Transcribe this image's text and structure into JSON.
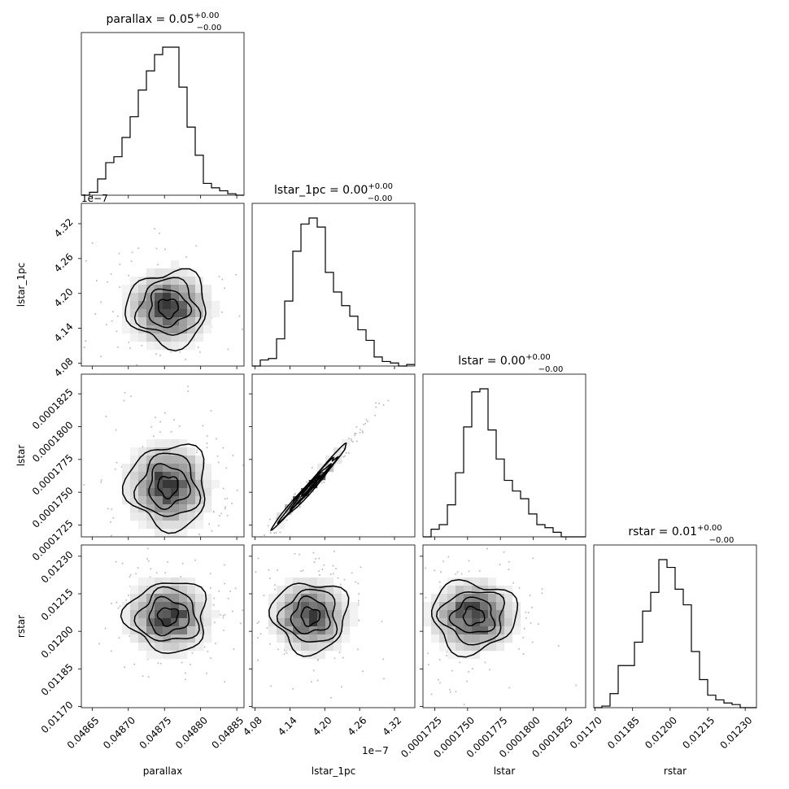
{
  "chart_data": {
    "type": "corner",
    "parameters": [
      "parallax",
      "lstar_1pc",
      "lstar",
      "rstar"
    ],
    "titles": {
      "parallax": {
        "label": "parallax = ",
        "value": "0.05",
        "plus": "+0.00",
        "minus": "−0.00"
      },
      "lstar_1pc": {
        "label": "lstar_1pc = ",
        "value": "0.00",
        "plus": "+0.00",
        "minus": "−0.00"
      },
      "lstar": {
        "label": "lstar = ",
        "value": "0.00",
        "plus": "+0.00",
        "minus": "−0.00"
      },
      "rstar": {
        "label": "rstar = ",
        "value": "0.01",
        "plus": "+0.00",
        "minus": "−0.00"
      }
    },
    "axis_labels": {
      "parallax": "parallax",
      "lstar_1pc": "lstar_1pc",
      "lstar": "lstar",
      "rstar": "rstar"
    },
    "ranges": {
      "parallax": [
        0.048635,
        0.04886
      ],
      "lstar_1pc": [
        4.075e-07,
        4.355e-07
      ],
      "lstar": [
        0.0001716,
        0.000184
      ],
      "rstar": [
        0.011695,
        0.012345
      ]
    },
    "ticks": {
      "parallax": {
        "values": [
          0.04865,
          0.0487,
          0.04875,
          0.0488,
          0.04885
        ],
        "labels": [
          "0.04865",
          "0.04870",
          "0.04875",
          "0.04880",
          "0.04885"
        ]
      },
      "lstar_1pc": {
        "values": [
          4.08e-07,
          4.14e-07,
          4.2e-07,
          4.26e-07,
          4.32e-07
        ],
        "labels": [
          "4.08",
          "4.14",
          "4.20",
          "4.26",
          "4.32"
        ],
        "offset": "1e−7"
      },
      "lstar": {
        "values": [
          0.0001725,
          0.000175,
          0.0001775,
          0.00018,
          0.0001825
        ],
        "labels": [
          "0.0001725",
          "0.0001750",
          "0.0001775",
          "0.0001800",
          "0.0001825"
        ]
      },
      "rstar": {
        "values": [
          0.0117,
          0.01185,
          0.012,
          0.01215,
          0.0123
        ],
        "labels": [
          "0.01170",
          "0.01185",
          "0.01200",
          "0.01215",
          "0.01230"
        ]
      }
    },
    "histograms": {
      "parallax": [
        0.0,
        0.02,
        0.11,
        0.22,
        0.26,
        0.39,
        0.53,
        0.71,
        0.84,
        0.95,
        1.0,
        1.0,
        0.73,
        0.46,
        0.27,
        0.08,
        0.05,
        0.03,
        0.01,
        0.0
      ],
      "lstar_1pc": [
        0.0,
        0.04,
        0.05,
        0.18,
        0.43,
        0.76,
        0.94,
        0.98,
        0.92,
        0.62,
        0.49,
        0.4,
        0.33,
        0.24,
        0.17,
        0.06,
        0.03,
        0.02,
        0.0,
        0.01
      ],
      "lstar": [
        0.0,
        0.05,
        0.08,
        0.21,
        0.42,
        0.72,
        0.95,
        0.97,
        0.7,
        0.51,
        0.37,
        0.3,
        0.25,
        0.15,
        0.08,
        0.06,
        0.03,
        0.0,
        0.0,
        0.0
      ],
      "rstar": [
        0.0,
        0.01,
        0.09,
        0.27,
        0.27,
        0.42,
        0.62,
        0.74,
        0.95,
        0.9,
        0.76,
        0.66,
        0.36,
        0.18,
        0.08,
        0.05,
        0.03,
        0.02,
        0.0,
        0.0
      ]
    },
    "posterior_center": {
      "parallax": 0.048755,
      "lstar_1pc": 4.175e-07,
      "lstar": 0.00017545,
      "rstar": 0.01206
    },
    "posterior_sigma": {
      "parallax": 2.75e-05,
      "lstar_1pc": 3.2e-09,
      "lstar": 1.6e-06,
      "rstar": 7e-05
    },
    "correlation": {
      "parallax|lstar_1pc": 0.0,
      "parallax|lstar": 0.0,
      "parallax|rstar": 0.0,
      "lstar_1pc|lstar": 0.99,
      "lstar_1pc|rstar": 0.0,
      "lstar|rstar": 0.0
    },
    "contour_levels_sigma": [
      0.5,
      1.0,
      1.5,
      2.0
    ],
    "grid": false
  }
}
